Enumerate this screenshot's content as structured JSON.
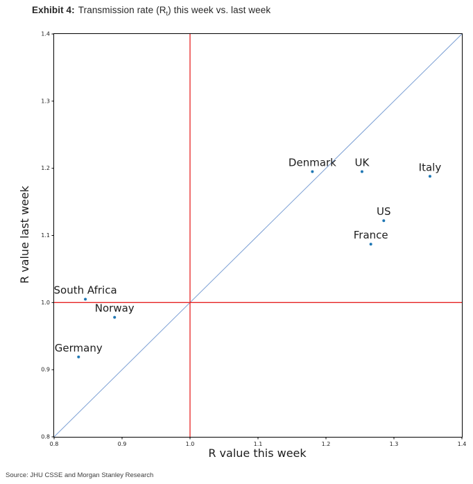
{
  "page": {
    "title": {
      "exhibit_label": "Exhibit 4:",
      "text_before_sub": "Transmission rate (R",
      "subscript": "t",
      "text_after_sub": ") this week vs. last week"
    },
    "source_note": "Source: JHU CSSE and Morgan Stanley Research"
  },
  "chart_data": {
    "type": "scatter",
    "title": "Transmission rate (Rt) this week vs. last week",
    "xlabel": "R value this week",
    "ylabel": "R value last week",
    "xlim": [
      0.8,
      1.4
    ],
    "ylim": [
      0.8,
      1.4
    ],
    "xtick_labels": [
      "0.8",
      "0.9",
      "1.0",
      "1.1",
      "1.2",
      "1.3",
      "1.4"
    ],
    "ytick_labels": [
      "0.8",
      "0.9",
      "1.0",
      "1.1",
      "1.2",
      "1.3",
      "1.4"
    ],
    "grid": false,
    "legend": null,
    "point_color": "#1f77b4",
    "label_color": "#1c1c1c",
    "axis_color": "#000000",
    "reference_lines": [
      {
        "type": "diagonal",
        "from": [
          0.8,
          0.8
        ],
        "to": [
          1.4,
          1.4
        ],
        "color": "#7b9fd4"
      },
      {
        "type": "vertical",
        "x": 1.0,
        "color": "#e62222"
      },
      {
        "type": "horizontal",
        "y": 1.0,
        "color": "#e62222"
      }
    ],
    "points": [
      {
        "label": "Denmark",
        "x": 1.18,
        "y": 1.195
      },
      {
        "label": "UK",
        "x": 1.253,
        "y": 1.195
      },
      {
        "label": "Italy",
        "x": 1.353,
        "y": 1.188
      },
      {
        "label": "US",
        "x": 1.285,
        "y": 1.122
      },
      {
        "label": "France",
        "x": 1.266,
        "y": 1.087
      },
      {
        "label": "South Africa",
        "x": 0.846,
        "y": 1.005
      },
      {
        "label": "Norway",
        "x": 0.889,
        "y": 0.978
      },
      {
        "label": "Germany",
        "x": 0.836,
        "y": 0.919
      }
    ]
  }
}
